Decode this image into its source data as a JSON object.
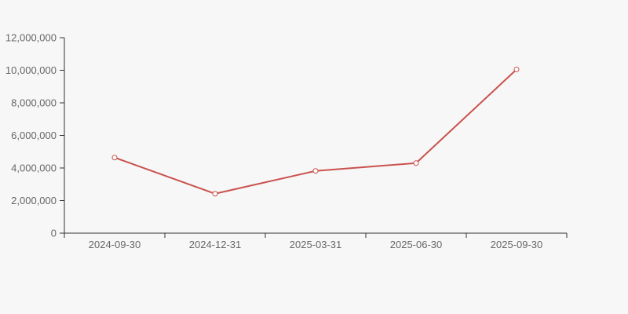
{
  "page": {
    "background_color": "#f7f7f7"
  },
  "chart_data": {
    "type": "line",
    "title": "",
    "xlabel": "",
    "ylabel": "",
    "categories": [
      "2024-09-30",
      "2024-12-31",
      "2025-03-31",
      "2025-06-30",
      "2025-09-30"
    ],
    "series": [
      {
        "name": "series-1",
        "values": [
          4640000,
          2420000,
          3820000,
          4300000,
          10050000
        ],
        "color": "#c9524e",
        "marker": "hollow-circle",
        "marker_fill": "#ffffff"
      }
    ],
    "ylim": [
      0,
      12000000
    ],
    "y_ticks": [
      0,
      2000000,
      4000000,
      6000000,
      8000000,
      10000000,
      12000000
    ],
    "y_tick_format": "thousands-comma",
    "grid": false,
    "legend": "none",
    "axis_color": "#333333",
    "label_color": "#666666"
  }
}
